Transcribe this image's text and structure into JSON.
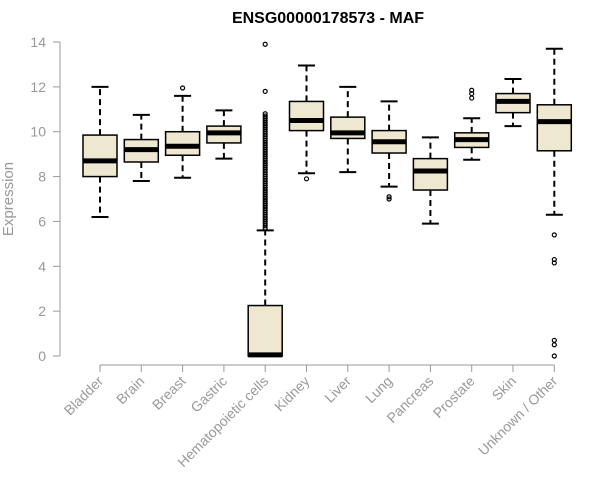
{
  "chart_data": {
    "type": "boxplot",
    "title": "ENSG00000178573 - MAF",
    "xlabel": "",
    "ylabel": "Expression",
    "ylim": [
      0,
      14
    ],
    "yticks": [
      0,
      2,
      4,
      6,
      8,
      10,
      12,
      14
    ],
    "grid": false,
    "legend": "none",
    "colors": {
      "box_fill": "#efe8d0",
      "box_stroke": "#000000",
      "axis": "#999999"
    },
    "categories": [
      "Bladder",
      "Brain",
      "Breast",
      "Gastric",
      "Hematopoietic cells",
      "Kidney",
      "Liver",
      "Lung",
      "Pancreas",
      "Prostate",
      "Skin",
      "Unknown / Other"
    ],
    "boxes": [
      {
        "category": "Bladder",
        "whisker_low": 6.2,
        "q1": 8.0,
        "median": 8.7,
        "q3": 9.85,
        "whisker_high": 12.0,
        "outliers": []
      },
      {
        "category": "Brain",
        "whisker_low": 7.8,
        "q1": 8.65,
        "median": 9.2,
        "q3": 9.65,
        "whisker_high": 10.75,
        "outliers": []
      },
      {
        "category": "Breast",
        "whisker_low": 7.95,
        "q1": 8.95,
        "median": 9.35,
        "q3": 10.0,
        "whisker_high": 11.6,
        "outliers": [
          11.95
        ]
      },
      {
        "category": "Gastric",
        "whisker_low": 8.8,
        "q1": 9.5,
        "median": 9.95,
        "q3": 10.25,
        "whisker_high": 10.95,
        "outliers": []
      },
      {
        "category": "Hematopoietic cells",
        "whisker_low": 0.0,
        "q1": 0.0,
        "median": 0.05,
        "q3": 2.25,
        "whisker_high": 5.6,
        "outliers": [
          5.7,
          5.8,
          5.9,
          6.0,
          6.1,
          6.2,
          6.3,
          6.4,
          6.5,
          6.6,
          6.7,
          6.8,
          6.9,
          7.0,
          7.1,
          7.2,
          7.3,
          7.4,
          7.5,
          7.6,
          7.7,
          7.8,
          7.9,
          8.0,
          8.1,
          8.2,
          8.3,
          8.4,
          8.5,
          8.6,
          8.7,
          8.8,
          8.9,
          9.0,
          9.1,
          9.2,
          9.3,
          9.4,
          9.5,
          9.6,
          9.7,
          9.8,
          9.9,
          10.0,
          10.1,
          10.2,
          10.3,
          10.4,
          10.5,
          10.6,
          10.7,
          10.8,
          11.8,
          13.9
        ]
      },
      {
        "category": "Kidney",
        "whisker_low": 8.15,
        "q1": 10.05,
        "median": 10.5,
        "q3": 11.35,
        "whisker_high": 12.95,
        "outliers": [
          7.9
        ]
      },
      {
        "category": "Liver",
        "whisker_low": 8.2,
        "q1": 9.7,
        "median": 9.95,
        "q3": 10.65,
        "whisker_high": 12.0,
        "outliers": []
      },
      {
        "category": "Lung",
        "whisker_low": 7.55,
        "q1": 9.05,
        "median": 9.55,
        "q3": 10.05,
        "whisker_high": 11.35,
        "outliers": [
          7.0,
          7.1
        ]
      },
      {
        "category": "Pancreas",
        "whisker_low": 5.9,
        "q1": 7.4,
        "median": 8.25,
        "q3": 8.8,
        "whisker_high": 9.75,
        "outliers": []
      },
      {
        "category": "Prostate",
        "whisker_low": 8.75,
        "q1": 9.3,
        "median": 9.65,
        "q3": 9.95,
        "whisker_high": 10.6,
        "outliers": [
          11.5,
          11.7,
          11.85
        ]
      },
      {
        "category": "Skin",
        "whisker_low": 10.25,
        "q1": 10.85,
        "median": 11.35,
        "q3": 11.7,
        "whisker_high": 12.35,
        "outliers": []
      },
      {
        "category": "Unknown / Other",
        "whisker_low": 6.3,
        "q1": 9.15,
        "median": 10.45,
        "q3": 11.2,
        "whisker_high": 13.7,
        "outliers": [
          5.4,
          4.3,
          4.15,
          0.7,
          0.5,
          0.0
        ]
      }
    ]
  }
}
